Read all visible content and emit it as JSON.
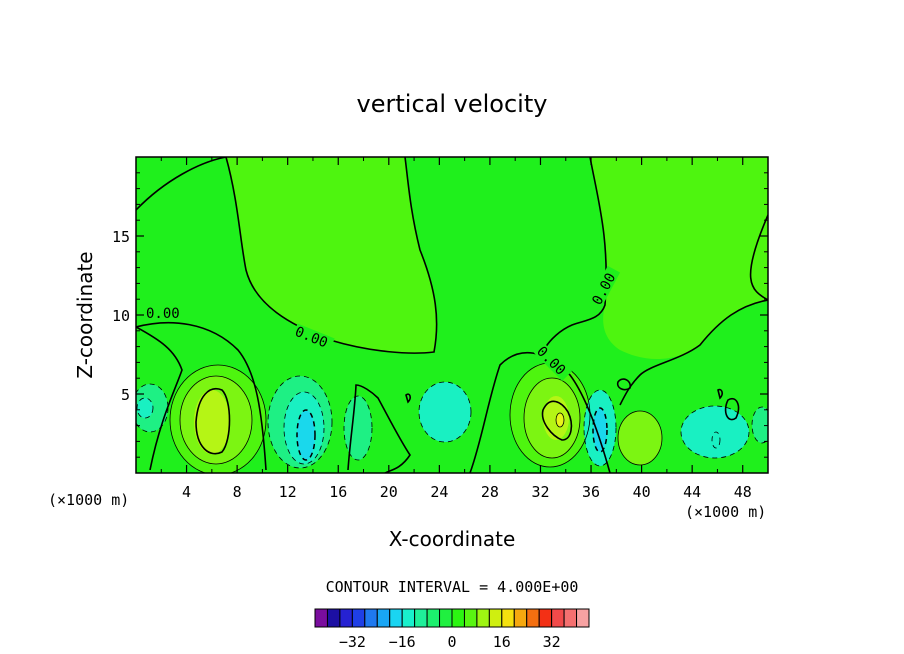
{
  "chart_data": {
    "type": "heatmap",
    "title": "vertical velocity",
    "xlabel": "X-coordinate",
    "ylabel": "Z-coordinate",
    "x_unit_left": "(×1000 m)",
    "x_unit_right": "(×1000 m)",
    "xlim": [
      0,
      50
    ],
    "ylim": [
      0,
      20
    ],
    "x_ticks": [
      "4",
      "8",
      "12",
      "16",
      "20",
      "24",
      "28",
      "32",
      "36",
      "40",
      "44",
      "48"
    ],
    "y_ticks": [
      "5",
      "10",
      "15"
    ],
    "contour_labels": [
      "0.00",
      "0.00",
      "0.00",
      "0.00",
      "0.00"
    ],
    "contour_interval_text": "CONTOUR INTERVAL = 4.000E+00",
    "colorbar": {
      "ticks": [
        "−32",
        "−16",
        "0",
        "16",
        "32"
      ],
      "colors": [
        "#7a0d9e",
        "#1c0fa3",
        "#2622d2",
        "#1f3fe6",
        "#1f79f0",
        "#19a6f5",
        "#1ad5f2",
        "#19f0cc",
        "#1ff09a",
        "#1cf06e",
        "#20f040",
        "#2cf512",
        "#59f512",
        "#9ef512",
        "#cfef10",
        "#f5e10f",
        "#f5a80f",
        "#f56f10",
        "#f33015",
        "#f24a4a",
        "#f57070",
        "#f7a2a2"
      ]
    },
    "colors": {
      "background_field": "#1ff01c",
      "updraft_weak": "#4ef50f",
      "updraft_medium": "#7cf512",
      "updraft_strong": "#b5f515",
      "updraft_core": "#e9f51a",
      "downdraft_weak": "#1ef084",
      "downdraft_medium": "#19f0c2",
      "downdraft_strong": "#1ad8ec"
    }
  }
}
